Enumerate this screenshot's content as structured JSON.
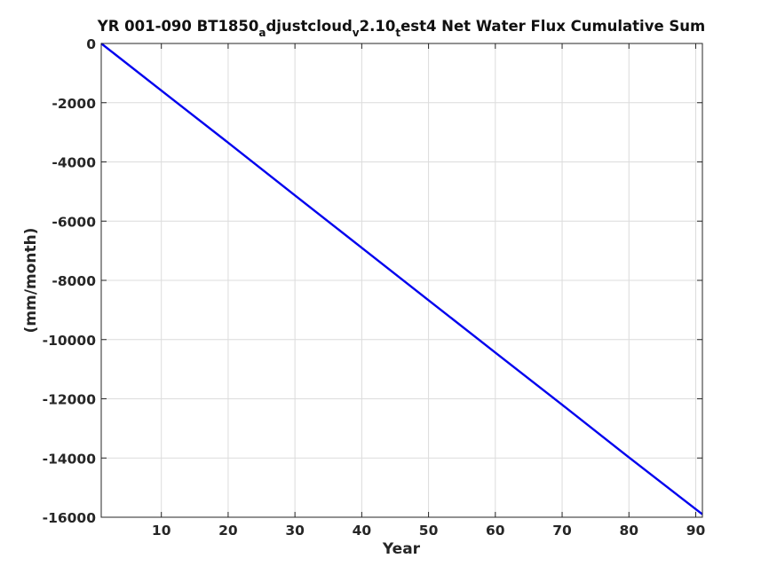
{
  "chart_data": {
    "type": "line",
    "title": {
      "part1": "YR 001-090 BT1850",
      "sub1": "a",
      "part2": "djustcloud",
      "sub2": "v",
      "part3": "2.10",
      "sub3": "t",
      "part4": "est4 Net Water Flux Cumulative Sum"
    },
    "xlabel": "Year",
    "ylabel": "(mm/month)",
    "xlim": [
      1,
      91
    ],
    "ylim": [
      -16000,
      0
    ],
    "xticks": [
      10,
      20,
      30,
      40,
      50,
      60,
      70,
      80,
      90
    ],
    "yticks": [
      0,
      -2000,
      -4000,
      -6000,
      -8000,
      -10000,
      -12000,
      -14000,
      -16000
    ],
    "grid": true,
    "series": [
      {
        "color": "#0000ee",
        "x": [
          1,
          10,
          20,
          30,
          40,
          50,
          60,
          70,
          80,
          91
        ],
        "y": [
          0,
          -1590,
          -3350,
          -5130,
          -6900,
          -8670,
          -10440,
          -12200,
          -13980,
          -15900
        ]
      }
    ]
  }
}
